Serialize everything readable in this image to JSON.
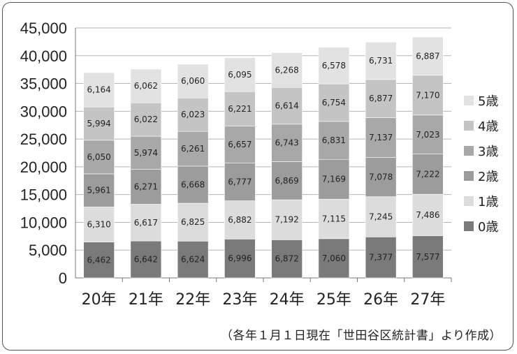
{
  "chart_data": {
    "type": "bar",
    "stacked": true,
    "categories": [
      "20年",
      "21年",
      "22年",
      "23年",
      "24年",
      "25年",
      "26年",
      "27年"
    ],
    "series": [
      {
        "name": "0歳",
        "color": "#7a7a7a",
        "values": [
          6462,
          6642,
          6624,
          6996,
          6872,
          7060,
          7377,
          7577
        ]
      },
      {
        "name": "1歳",
        "color": "#dcdcdc",
        "values": [
          6310,
          6617,
          6825,
          6882,
          7192,
          7115,
          7245,
          7486
        ]
      },
      {
        "name": "2歳",
        "color": "#9c9c9c",
        "values": [
          5961,
          6271,
          6668,
          6777,
          6869,
          7169,
          7078,
          7222
        ]
      },
      {
        "name": "3歳",
        "color": "#a8a8a8",
        "values": [
          6050,
          5974,
          6261,
          6657,
          6743,
          6831,
          7137,
          7023
        ]
      },
      {
        "name": "4歳",
        "color": "#c4c4c4",
        "values": [
          5994,
          6022,
          6023,
          6221,
          6614,
          6754,
          6877,
          7170
        ]
      },
      {
        "name": "5歳",
        "color": "#e2e2e2",
        "values": [
          6164,
          6062,
          6060,
          6095,
          6268,
          6578,
          6731,
          6887
        ]
      }
    ],
    "ylim": [
      0,
      45000
    ],
    "yticks": [
      0,
      5000,
      10000,
      15000,
      20000,
      25000,
      30000,
      35000,
      40000,
      45000
    ],
    "ytick_labels": [
      "0",
      "5,000",
      "10,000",
      "15,000",
      "20,000",
      "25,000",
      "30,000",
      "35,000",
      "40,000",
      "45,000"
    ],
    "grid": true,
    "legend_position": "right",
    "legend_order": [
      "5歳",
      "4歳",
      "3歳",
      "2歳",
      "1歳",
      "0歳"
    ],
    "xlabel": "",
    "ylabel": ""
  },
  "source_note": "（各年１月１日現在「世田谷区統計書」より作成）"
}
